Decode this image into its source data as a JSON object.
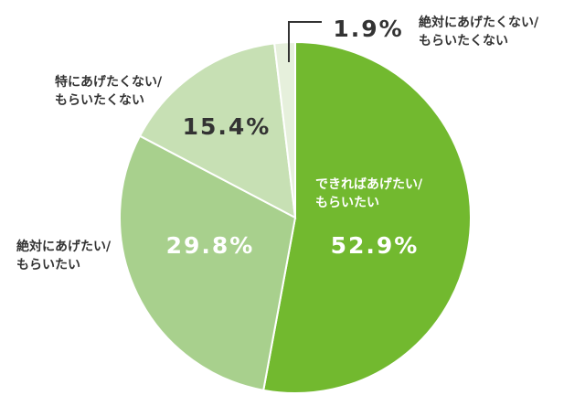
{
  "chart_data": {
    "type": "pie",
    "categories": [
      [
        "できればあげたい/",
        "もらいたい"
      ],
      [
        "絶対にあげたい/",
        "もらいたい"
      ],
      [
        "特にあげたくない/",
        "もらいたくない"
      ],
      [
        "絶対にあげたくない/",
        "もらいたくない"
      ]
    ],
    "values": [
      52.9,
      29.8,
      15.4,
      1.9
    ],
    "value_labels": [
      "52.9%",
      "29.8%",
      "15.4%",
      "1.9%"
    ],
    "colors": [
      "#72b92f",
      "#a8d08d",
      "#c7e0b4",
      "#e6f0dc"
    ]
  }
}
